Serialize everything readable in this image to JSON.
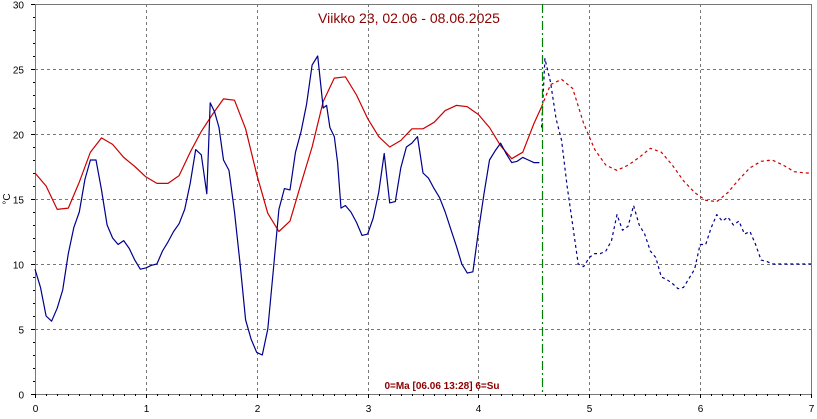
{
  "chart_data": {
    "type": "line",
    "title": "Viikko 23, 02.06 - 08.06.2025",
    "footer_label": "0=Ma [06.06 13:28] 6=Su",
    "ylabel": "°C",
    "xlim": [
      0,
      7
    ],
    "ylim": [
      0,
      30
    ],
    "x_ticks": [
      "0",
      "1",
      "2",
      "3",
      "4",
      "5",
      "6",
      "7"
    ],
    "y_ticks": [
      "0",
      "5",
      "10",
      "15",
      "20",
      "25",
      "30"
    ],
    "grid": true,
    "now_marker_x": 4.57,
    "colors": {
      "red": "#cc0000",
      "blue": "#00008b",
      "now_marker": "#008000",
      "grid": "#777777",
      "title": "#8b0000"
    },
    "series": [
      {
        "color": "#cc0000",
        "style": "solid",
        "x": [
          0,
          0.1,
          0.2,
          0.3,
          0.4,
          0.5,
          0.6,
          0.7,
          0.8,
          0.9,
          1.0,
          1.1,
          1.2,
          1.3,
          1.4,
          1.5,
          1.6,
          1.7,
          1.8,
          1.9,
          2.0,
          2.1,
          2.2,
          2.3,
          2.4,
          2.5,
          2.6,
          2.7,
          2.8,
          2.9,
          3.0,
          3.1,
          3.2,
          3.3,
          3.4,
          3.5,
          3.6,
          3.7,
          3.8,
          3.9,
          4.0,
          4.1,
          4.2,
          4.3,
          4.4,
          4.5,
          4.57
        ],
        "values": [
          17,
          16,
          14.2,
          14.3,
          16.3,
          18.6,
          19.7,
          19.2,
          18.2,
          17.5,
          16.7,
          16.2,
          16.2,
          16.8,
          18.6,
          20.2,
          21.5,
          22.7,
          22.6,
          20.4,
          16.9,
          13.9,
          12.5,
          13.3,
          16.2,
          19.0,
          22.5,
          24.3,
          24.4,
          23.0,
          21.2,
          19.8,
          19.0,
          19.5,
          20.4,
          20.4,
          20.9,
          21.8,
          22.2,
          22.1,
          21.5,
          20.5,
          19.1,
          18.1,
          18.6,
          20.8,
          22.1
        ]
      },
      {
        "color": "#00008b",
        "style": "solid",
        "x": [
          0,
          0.05,
          0.1,
          0.15,
          0.2,
          0.25,
          0.3,
          0.35,
          0.4,
          0.45,
          0.5,
          0.55,
          0.6,
          0.65,
          0.7,
          0.75,
          0.8,
          0.85,
          0.9,
          0.95,
          1.0,
          1.05,
          1.1,
          1.15,
          1.2,
          1.25,
          1.3,
          1.35,
          1.4,
          1.45,
          1.5,
          1.55,
          1.58,
          1.62,
          1.66,
          1.7,
          1.75,
          1.8,
          1.85,
          1.9,
          1.95,
          2.0,
          2.05,
          2.1,
          2.15,
          2.2,
          2.25,
          2.3,
          2.35,
          2.4,
          2.45,
          2.5,
          2.55,
          2.6,
          2.63,
          2.66,
          2.7,
          2.73,
          2.76,
          2.8,
          2.85,
          2.9,
          2.95,
          3.0,
          3.05,
          3.1,
          3.15,
          3.2,
          3.25,
          3.3,
          3.35,
          3.4,
          3.45,
          3.5,
          3.55,
          3.6,
          3.65,
          3.7,
          3.75,
          3.8,
          3.85,
          3.9,
          3.95,
          4.0,
          4.05,
          4.1,
          4.15,
          4.2,
          4.25,
          4.3,
          4.35,
          4.4,
          4.45,
          4.5,
          4.55
        ],
        "values": [
          9.6,
          8.2,
          6.0,
          5.6,
          6.6,
          8.0,
          10.8,
          12.8,
          14.0,
          16.5,
          18.0,
          18.0,
          15.7,
          13.0,
          12.0,
          11.5,
          11.8,
          11.2,
          10.3,
          9.6,
          9.7,
          9.9,
          10.0,
          11.0,
          11.7,
          12.5,
          13.1,
          14.2,
          16.2,
          18.8,
          18.4,
          15.4,
          22.4,
          21.7,
          20.5,
          18.0,
          17.2,
          14.0,
          10.0,
          5.7,
          4.2,
          3.2,
          3.0,
          5.0,
          9.5,
          14.2,
          15.8,
          15.7,
          18.6,
          20.2,
          22.3,
          25.3,
          26.0,
          22.0,
          22.2,
          20.5,
          19.8,
          17.8,
          14.3,
          14.5,
          14.0,
          13.2,
          12.2,
          12.3,
          13.5,
          15.5,
          18.5,
          14.7,
          14.8,
          17.4,
          19.0,
          19.3,
          19.8,
          17.0,
          16.6,
          15.8,
          15.1,
          14.0,
          12.7,
          11.4,
          10.0,
          9.3,
          9.4,
          12.5,
          15.4,
          18.0,
          18.7,
          19.3,
          18.5,
          17.8,
          17.9,
          18.2,
          18.0,
          17.8,
          17.8
        ]
      },
      {
        "color": "#cc0000",
        "style": "dashed",
        "x": [
          4.57,
          4.65,
          4.75,
          4.85,
          4.95,
          5.05,
          5.15,
          5.25,
          5.35,
          5.45,
          5.55,
          5.65,
          5.75,
          5.85,
          5.95,
          6.05,
          6.15,
          6.25,
          6.35,
          6.45,
          6.55,
          6.65,
          6.75,
          6.85,
          6.95,
          7.0
        ],
        "values": [
          22.1,
          23.8,
          24.2,
          23.5,
          20.8,
          18.8,
          17.6,
          17.2,
          17.6,
          18.2,
          18.9,
          18.6,
          17.6,
          16.4,
          15.5,
          14.9,
          14.8,
          15.5,
          16.5,
          17.4,
          17.9,
          18.0,
          17.6,
          17.1,
          17.0,
          17.0
        ]
      },
      {
        "color": "#00008b",
        "style": "dashed",
        "x": [
          4.57,
          4.6,
          4.65,
          4.7,
          4.75,
          4.8,
          4.85,
          4.9,
          4.95,
          5.0,
          5.05,
          5.1,
          5.15,
          5.2,
          5.25,
          5.3,
          5.35,
          5.4,
          5.45,
          5.5,
          5.55,
          5.6,
          5.65,
          5.7,
          5.75,
          5.8,
          5.85,
          5.9,
          5.95,
          6.0,
          6.05,
          6.1,
          6.15,
          6.2,
          6.25,
          6.3,
          6.35,
          6.4,
          6.45,
          6.5,
          6.55,
          6.6,
          6.65,
          6.7,
          6.75,
          6.8,
          6.85,
          6.9,
          6.95,
          7.0
        ],
        "values": [
          20.5,
          25.8,
          24.0,
          21.2,
          19.5,
          16.0,
          13.0,
          10.0,
          9.8,
          10.5,
          10.8,
          10.8,
          11.0,
          11.8,
          13.8,
          12.6,
          12.9,
          14.5,
          13.0,
          12.3,
          11.0,
          10.5,
          9.0,
          8.8,
          8.5,
          8.1,
          8.2,
          8.9,
          9.6,
          11.5,
          11.5,
          12.8,
          13.8,
          13.3,
          13.6,
          13.0,
          13.3,
          12.3,
          12.5,
          11.5,
          10.3,
          10.2,
          10.0,
          10.0,
          10.0,
          10.0,
          10.0,
          10.0,
          10.0,
          10.0
        ]
      }
    ]
  }
}
